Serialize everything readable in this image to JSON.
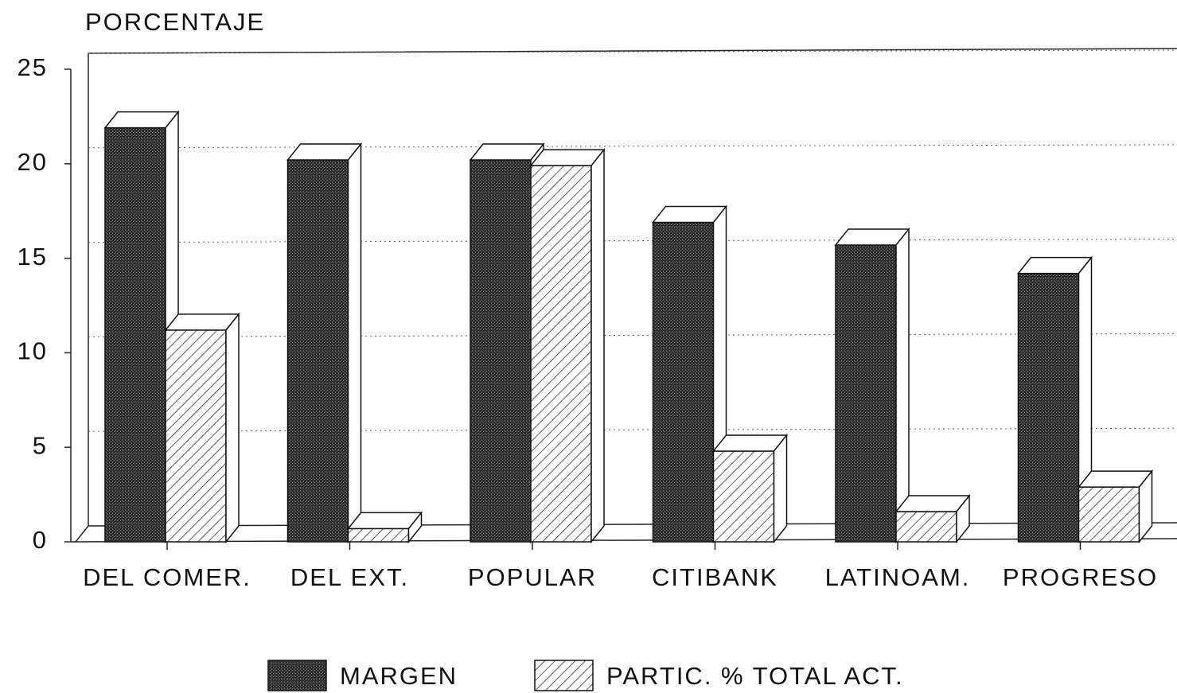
{
  "chart_data": {
    "type": "bar3d",
    "y_label": "PORCENTAJE",
    "categories": [
      "DEL COMER.",
      "DEL EXT.",
      "POPULAR",
      "CITIBANK",
      "LATINOAM.",
      "PROGRESO"
    ],
    "series": [
      {
        "name": "MARGEN",
        "color": "#3a3a3a",
        "values": [
          21.9,
          20.2,
          20.2,
          16.9,
          15.7,
          14.2
        ]
      },
      {
        "name": "PARTIC. % TOTAL ACT.",
        "color": "#ffffff",
        "values": [
          11.2,
          0.7,
          19.9,
          4.8,
          1.6,
          2.9
        ]
      }
    ],
    "ylim": [
      0,
      25
    ],
    "yticks": [
      0,
      5,
      10,
      15,
      20,
      25
    ],
    "grid": true,
    "legend": "bottom"
  }
}
